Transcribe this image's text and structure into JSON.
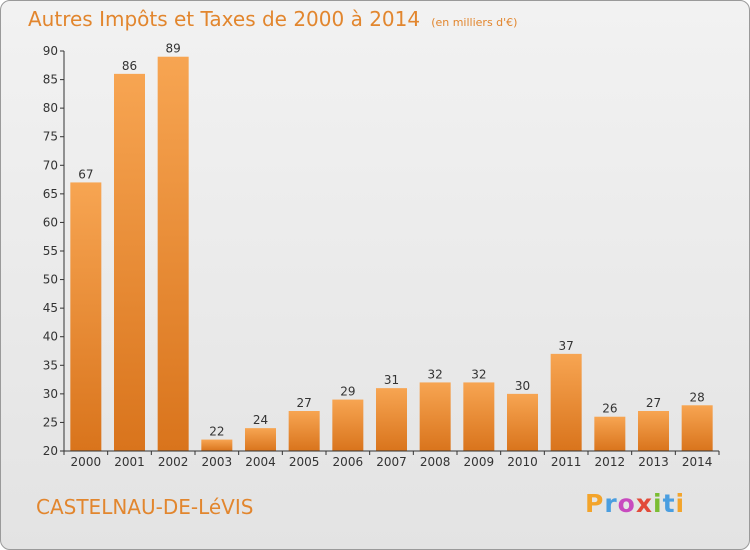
{
  "title": "Autres Impôts et Taxes de 2000 à 2014",
  "unit_label": "(en milliers d'€)",
  "commune": "CASTELNAU-DE-LéVIS",
  "logo": [
    "P",
    "r",
    "o",
    "x",
    "i",
    "t",
    "i"
  ],
  "colors": {
    "bar_top": "#f7a552",
    "bar_bottom": "#d9741c",
    "text_accent": "#e2862e",
    "axis": "#333333"
  },
  "chart_data": {
    "type": "bar",
    "categories": [
      "2000",
      "2001",
      "2002",
      "2003",
      "2004",
      "2005",
      "2006",
      "2007",
      "2008",
      "2009",
      "2010",
      "2011",
      "2012",
      "2013",
      "2014"
    ],
    "values": [
      67,
      86,
      89,
      22,
      24,
      27,
      29,
      31,
      32,
      32,
      30,
      37,
      26,
      27,
      28
    ],
    "title": "Autres Impôts et Taxes de 2000 à 2014",
    "ylim": [
      20,
      90
    ],
    "yticks": [
      20,
      25,
      30,
      35,
      40,
      45,
      50,
      55,
      60,
      65,
      70,
      75,
      80,
      85,
      90
    ],
    "grid": false,
    "legend": "none"
  }
}
